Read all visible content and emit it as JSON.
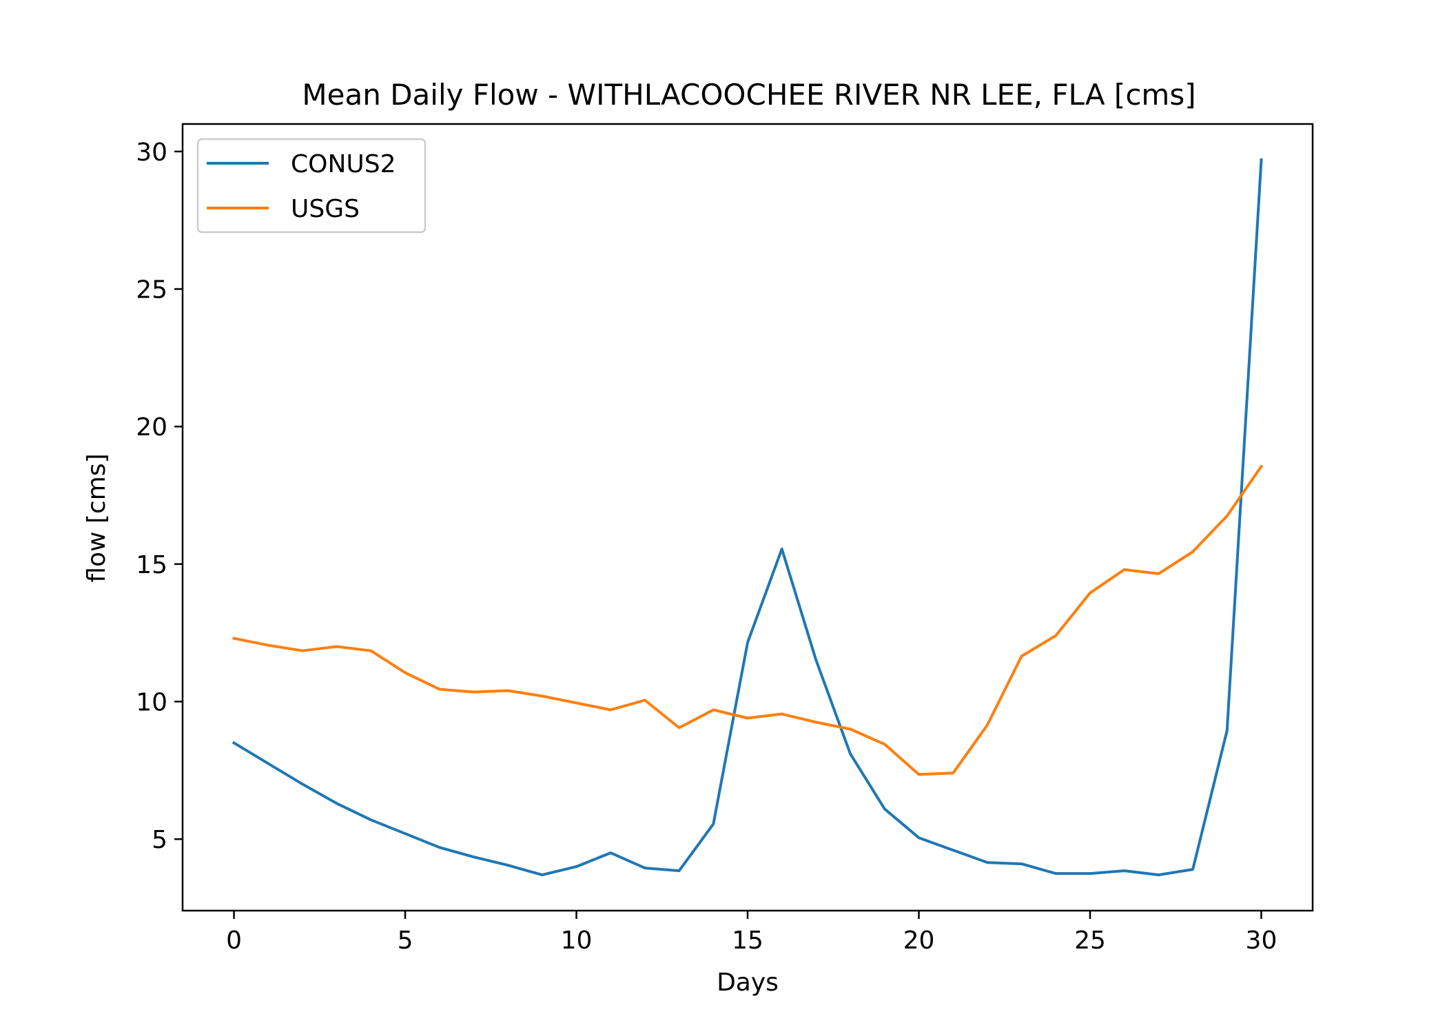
{
  "chart_data": {
    "type": "line",
    "title": "Mean Daily Flow - WITHLACOOCHEE RIVER NR LEE, FLA [cms]",
    "xlabel": "Days",
    "ylabel": "flow [cms]",
    "xlim": [
      -1.5,
      31.5
    ],
    "ylim": [
      2.4,
      31.0
    ],
    "xticks": [
      0,
      5,
      10,
      15,
      20,
      25,
      30
    ],
    "yticks": [
      5,
      10,
      15,
      20,
      25,
      30
    ],
    "grid": false,
    "legend_position": "top-left",
    "x": [
      0,
      1,
      2,
      3,
      4,
      5,
      6,
      7,
      8,
      9,
      10,
      11,
      12,
      13,
      14,
      15,
      16,
      17,
      18,
      19,
      20,
      21,
      22,
      23,
      24,
      25,
      26,
      27,
      28,
      29,
      30
    ],
    "series": [
      {
        "name": "CONUS2",
        "color": "#1f77b4",
        "values": [
          8.5,
          7.75,
          7.0,
          6.3,
          5.7,
          5.2,
          4.7,
          4.35,
          4.05,
          3.7,
          4.0,
          4.5,
          3.95,
          3.85,
          5.55,
          12.15,
          15.55,
          11.5,
          8.1,
          6.1,
          5.05,
          4.6,
          4.15,
          4.1,
          3.75,
          3.75,
          3.85,
          3.7,
          3.9,
          8.95,
          29.7
        ]
      },
      {
        "name": "USGS",
        "color": "#ff7f0e",
        "values": [
          12.3,
          12.05,
          11.85,
          12.0,
          11.85,
          11.05,
          10.45,
          10.35,
          10.4,
          10.2,
          9.95,
          9.7,
          10.05,
          9.05,
          9.7,
          9.4,
          9.55,
          9.25,
          9.0,
          8.45,
          7.35,
          7.4,
          9.15,
          11.65,
          12.4,
          13.95,
          14.8,
          14.65,
          15.45,
          16.75,
          18.55
        ]
      }
    ]
  }
}
